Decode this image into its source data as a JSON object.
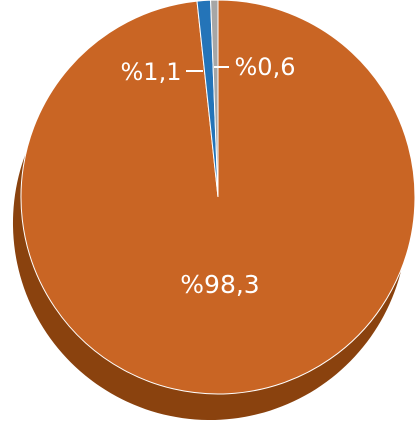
{
  "chart_data": {
    "type": "pie",
    "style": "3d",
    "title": "",
    "slices": [
      {
        "label": "%98,3",
        "value": 98.3,
        "color": "#C96524",
        "shadow_color": "#8A420E"
      },
      {
        "label": "%1,1",
        "value": 1.1,
        "color": "#2474B8",
        "shadow_color": "#1A4F7C"
      },
      {
        "label": "%0,6",
        "value": 0.6,
        "color": "#A6A6A6",
        "shadow_color": "#6E6E6E"
      }
    ],
    "legend": "none"
  }
}
